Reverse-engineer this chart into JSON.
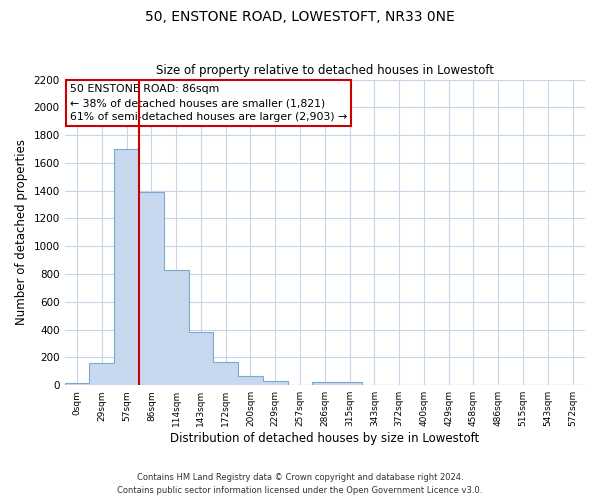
{
  "title": "50, ENSTONE ROAD, LOWESTOFT, NR33 0NE",
  "subtitle": "Size of property relative to detached houses in Lowestoft",
  "xlabel": "Distribution of detached houses by size in Lowestoft",
  "ylabel": "Number of detached properties",
  "bin_labels": [
    "0sqm",
    "29sqm",
    "57sqm",
    "86sqm",
    "114sqm",
    "143sqm",
    "172sqm",
    "200sqm",
    "229sqm",
    "257sqm",
    "286sqm",
    "315sqm",
    "343sqm",
    "372sqm",
    "400sqm",
    "429sqm",
    "458sqm",
    "486sqm",
    "515sqm",
    "543sqm",
    "572sqm"
  ],
  "bar_heights": [
    15,
    160,
    1700,
    1390,
    830,
    380,
    165,
    65,
    30,
    0,
    25,
    20,
    0,
    0,
    0,
    0,
    0,
    0,
    0,
    0,
    0
  ],
  "bar_color": "#c8d8ee",
  "bar_edge_color": "#7aaad0",
  "vline_x_index": 3,
  "vline_color": "#cc0000",
  "ylim": [
    0,
    2200
  ],
  "yticks": [
    0,
    200,
    400,
    600,
    800,
    1000,
    1200,
    1400,
    1600,
    1800,
    2000,
    2200
  ],
  "annotation_text": "50 ENSTONE ROAD: 86sqm\n← 38% of detached houses are smaller (1,821)\n61% of semi-detached houses are larger (2,903) →",
  "annotation_box_edge": "#cc0000",
  "footer_line1": "Contains HM Land Registry data © Crown copyright and database right 2024.",
  "footer_line2": "Contains public sector information licensed under the Open Government Licence v3.0.",
  "bg_color": "#ffffff",
  "grid_color": "#c8d4e8"
}
